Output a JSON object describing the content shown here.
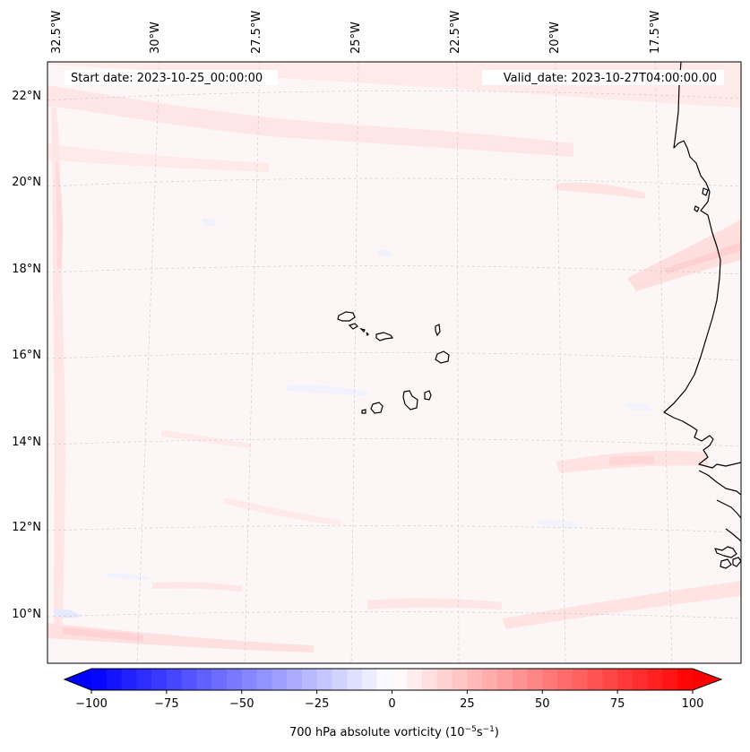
{
  "header": {
    "start_date": "Start date: 2023-10-25_00:00:00",
    "valid_date": "Valid_date: 2023-10-27T04:00:00.00"
  },
  "map": {
    "lon_labels": [
      "32.5°W",
      "30°W",
      "27.5°W",
      "25°W",
      "22.5°W",
      "20°W",
      "17.5°W"
    ],
    "lat_labels": [
      "22°N",
      "20°N",
      "18°N",
      "16°N",
      "14°N",
      "12°N",
      "10°N"
    ],
    "colors": {
      "background_field": "#fdf6f6",
      "positive_shade": "#ffe3e3",
      "positive_shade_strong": "#ffd3d3",
      "negative_shade": "#eef0ff",
      "coastline": "#000000",
      "gridline": "#c8c8c8"
    }
  },
  "colorbar": {
    "ticks": [
      "−100",
      "−75",
      "−50",
      "−25",
      "0",
      "25",
      "50",
      "75",
      "100"
    ],
    "label_main": "700 hPa absolute vorticity (10",
    "label_exp1": "−5",
    "label_mid": "s",
    "label_exp2": "−1",
    "label_end": ")",
    "min_color": "#0000ff",
    "mid_color": "#ffffff",
    "max_color": "#ff0000"
  }
}
